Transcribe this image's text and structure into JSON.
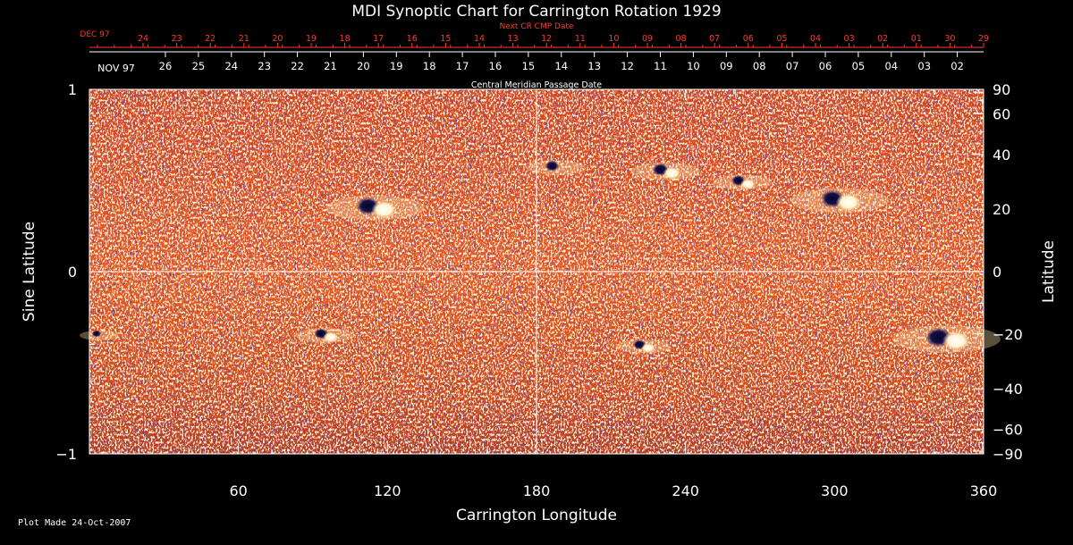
{
  "chart_data": {
    "type": "heatmap",
    "title": "MDI Synoptic Chart for Carrington Rotation 1929",
    "top_axis_label": "Next CR CMP Date",
    "top_axis_month": "DEC 97",
    "top_axis_ticks": [
      "24",
      "23",
      "22",
      "21",
      "20",
      "19",
      "18",
      "17",
      "16",
      "15",
      "14",
      "13",
      "12",
      "11",
      "10",
      "09",
      "08",
      "07",
      "06",
      "05",
      "04",
      "03",
      "02",
      "01",
      "30",
      "29"
    ],
    "mid_axis_label": "Central Meridian Passage Date",
    "mid_axis_month": "NOV 97",
    "mid_axis_ticks": [
      "26",
      "25",
      "24",
      "23",
      "22",
      "21",
      "20",
      "19",
      "18",
      "17",
      "16",
      "15",
      "14",
      "13",
      "12",
      "11",
      "10",
      "09",
      "08",
      "07",
      "06",
      "05",
      "04",
      "03",
      "02"
    ],
    "xlabel": "Carrington Longitude",
    "xlim": [
      0,
      360
    ],
    "x_ticks": [
      "60",
      "120",
      "180",
      "240",
      "300",
      "360"
    ],
    "ylabel_left": "Sine Latitude",
    "ylim": [
      -1,
      1
    ],
    "y_ticks_left": [
      "1",
      "0",
      "−1"
    ],
    "ylabel_right": "Latitude",
    "y_ticks_right": [
      "90",
      "60",
      "40",
      "20",
      "0",
      "−20",
      "−40",
      "−60",
      "−90"
    ],
    "y_right_values": [
      90,
      60,
      40,
      20,
      0,
      -20,
      -40,
      -60,
      -90
    ],
    "grid": {
      "vertical_at_longitude": 180,
      "horizontal_at_sine_latitude": 0
    },
    "colors": {
      "background_field": "#e8581a",
      "positive_polarity": "#ffffff",
      "negative_polarity": "#0a0a40",
      "grid": "#ffffff"
    },
    "regions": [
      {
        "lon": 115,
        "sinlat": 0.35,
        "polarity": "bipolar",
        "size": 1.0
      },
      {
        "lon": 188,
        "sinlat": 0.57,
        "polarity": "negative",
        "size": 0.6
      },
      {
        "lon": 232,
        "sinlat": 0.55,
        "polarity": "bipolar",
        "size": 0.7
      },
      {
        "lon": 263,
        "sinlat": 0.49,
        "polarity": "bipolar",
        "size": 0.6
      },
      {
        "lon": 302,
        "sinlat": 0.39,
        "polarity": "bipolar",
        "size": 1.0
      },
      {
        "lon": 345,
        "sinlat": -0.37,
        "polarity": "bipolar",
        "size": 1.1
      },
      {
        "lon": 95,
        "sinlat": -0.35,
        "polarity": "bipolar",
        "size": 0.6
      },
      {
        "lon": 223,
        "sinlat": -0.41,
        "polarity": "bipolar",
        "size": 0.55
      },
      {
        "lon": 4,
        "sinlat": -0.35,
        "polarity": "negative",
        "size": 0.4
      }
    ]
  },
  "footer": {
    "stamp": "Plot Made 24-Oct-2007"
  }
}
